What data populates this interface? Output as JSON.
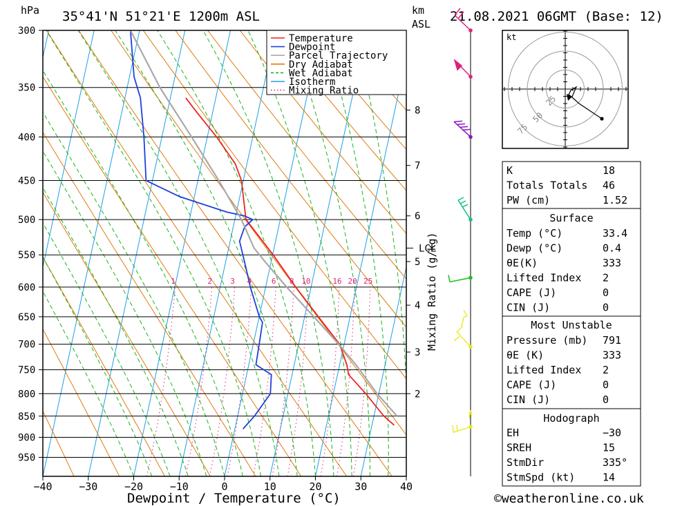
{
  "header": {
    "pressure_unit": "hPa",
    "location": "35°41'N  51°21'E  1200m  ASL",
    "height_unit": "km",
    "height_ref": "ASL",
    "datetime": "21.08.2021  06GMT  (Base: 12)"
  },
  "legend": [
    {
      "label": "Temperature",
      "color": "#ee2222",
      "style": "solid"
    },
    {
      "label": "Dewpoint",
      "color": "#1f3fdd",
      "style": "solid"
    },
    {
      "label": "Parcel Trajectory",
      "color": "#a8a8a8",
      "style": "solid"
    },
    {
      "label": "Dry Adiabat",
      "color": "#e07a10",
      "style": "solid"
    },
    {
      "label": "Wet Adiabat",
      "color": "#18b418",
      "style": "dashed"
    },
    {
      "label": "Isotherm",
      "color": "#1aa0e6",
      "style": "solid"
    },
    {
      "label": "Mixing Ratio",
      "color": "#e0207a",
      "style": "dotted"
    }
  ],
  "chart_data": {
    "type": "line",
    "xlabel": "Dewpoint / Temperature (°C)",
    "ylabel": "hPa",
    "x_ticks": [
      "−40",
      "−30",
      "−20",
      "−10",
      "0",
      "10",
      "20",
      "30",
      "40"
    ],
    "y_ticks": [
      "300",
      "350",
      "400",
      "450",
      "500",
      "550",
      "600",
      "650",
      "700",
      "750",
      "800",
      "850",
      "900",
      "950"
    ],
    "y_scale": "log",
    "skew": true,
    "height_axis": {
      "label": "km ASL",
      "ticks": [
        {
          "km": "8",
          "p": 372
        },
        {
          "km": "7",
          "p": 432
        },
        {
          "km": "6",
          "p": 495
        },
        {
          "km": "5",
          "p": 560
        },
        {
          "km": "4",
          "p": 630
        },
        {
          "km": "3",
          "p": 715
        },
        {
          "km": "2",
          "p": 800
        }
      ],
      "lcl": {
        "label": "LCL",
        "p": 540
      }
    },
    "mixing_ratio_label": "Mixing Ratio (g/kg)",
    "mixing_ratio_values": [
      "1",
      "2",
      "3",
      "4",
      "6",
      "8",
      "10",
      "16",
      "20",
      "25"
    ],
    "series": [
      {
        "name": "Temperature",
        "color": "#ee2222",
        "points": [
          [
            871,
            33.4
          ],
          [
            850,
            30.5
          ],
          [
            800,
            25
          ],
          [
            760,
            20
          ],
          [
            740,
            19
          ],
          [
            700,
            16.2
          ],
          [
            650,
            10
          ],
          [
            600,
            3.5
          ],
          [
            550,
            -3
          ],
          [
            500,
            -10.5
          ],
          [
            490,
            -11
          ],
          [
            470,
            -12
          ],
          [
            450,
            -13
          ],
          [
            430,
            -15
          ],
          [
            400,
            -20
          ],
          [
            375,
            -25
          ],
          [
            360,
            -28
          ]
        ]
      },
      {
        "name": "Dewpoint",
        "color": "#1f3fdd",
        "points": [
          [
            880,
            0.4
          ],
          [
            850,
            2
          ],
          [
            800,
            4
          ],
          [
            760,
            3
          ],
          [
            740,
            -1
          ],
          [
            700,
            -1.5
          ],
          [
            660,
            -2
          ],
          [
            650,
            -3
          ],
          [
            600,
            -6.5
          ],
          [
            560,
            -9
          ],
          [
            530,
            -11
          ],
          [
            510,
            -10.5
          ],
          [
            500,
            -9
          ],
          [
            495,
            -11
          ],
          [
            490,
            -15
          ],
          [
            470,
            -26
          ],
          [
            450,
            -34
          ],
          [
            400,
            -36
          ],
          [
            360,
            -38
          ],
          [
            340,
            -40
          ],
          [
            300,
            -42
          ]
        ]
      },
      {
        "name": "Parcel Trajectory",
        "color": "#a8a8a8",
        "points": [
          [
            850,
            33.4
          ],
          [
            800,
            27.5
          ],
          [
            740,
            21
          ],
          [
            700,
            16
          ],
          [
            650,
            9
          ],
          [
            600,
            1.5
          ],
          [
            560,
            -4.5
          ],
          [
            540,
            -7.5
          ],
          [
            500,
            -11.5
          ],
          [
            450,
            -18
          ],
          [
            400,
            -25.5
          ],
          [
            350,
            -34
          ],
          [
            300,
            -42
          ]
        ]
      }
    ],
    "indices": [
      {
        "label": "K",
        "value": "18"
      },
      {
        "label": "Totals Totals",
        "value": "46"
      },
      {
        "label": "PW (cm)",
        "value": "1.52"
      }
    ],
    "surface": {
      "title": "Surface",
      "rows": [
        {
          "label": "Temp (°C)",
          "value": "33.4"
        },
        {
          "label": "Dewp (°C)",
          "value": "0.4"
        },
        {
          "label": "θE(K)",
          "value": "333"
        },
        {
          "label": "Lifted Index",
          "value": "2"
        },
        {
          "label": "CAPE (J)",
          "value": "0"
        },
        {
          "label": "CIN (J)",
          "value": "0"
        }
      ]
    },
    "most_unstable": {
      "title": "Most Unstable",
      "rows": [
        {
          "label": "Pressure (mb)",
          "value": "791"
        },
        {
          "label": "θE (K)",
          "value": "333"
        },
        {
          "label": "Lifted Index",
          "value": "2"
        },
        {
          "label": "CAPE (J)",
          "value": "0"
        },
        {
          "label": "CIN (J)",
          "value": "0"
        }
      ]
    },
    "hodograph_table": {
      "title": "Hodograph",
      "rows": [
        {
          "label": "EH",
          "value": "−30"
        },
        {
          "label": "SREH",
          "value": "15"
        },
        {
          "label": "StmDir",
          "value": "335°"
        },
        {
          "label": "StmSpd (kt)",
          "value": "14"
        }
      ]
    },
    "hodograph": {
      "unit": "kt",
      "ring_labels": [
        "25",
        "50",
        "75"
      ]
    },
    "wind_barbs": [
      {
        "p": 300,
        "color": "#e0207a"
      },
      {
        "p": 340,
        "color": "#e0207a"
      },
      {
        "p": 400,
        "color": "#8a18c0"
      },
      {
        "p": 500,
        "color": "#18c08a"
      },
      {
        "p": 585,
        "color": "#18c018"
      },
      {
        "p": 705,
        "color": "#e8e818"
      },
      {
        "p": 875,
        "color": "#e8e818"
      }
    ]
  },
  "footer": {
    "copyright": "©weatheronline.co.uk"
  }
}
